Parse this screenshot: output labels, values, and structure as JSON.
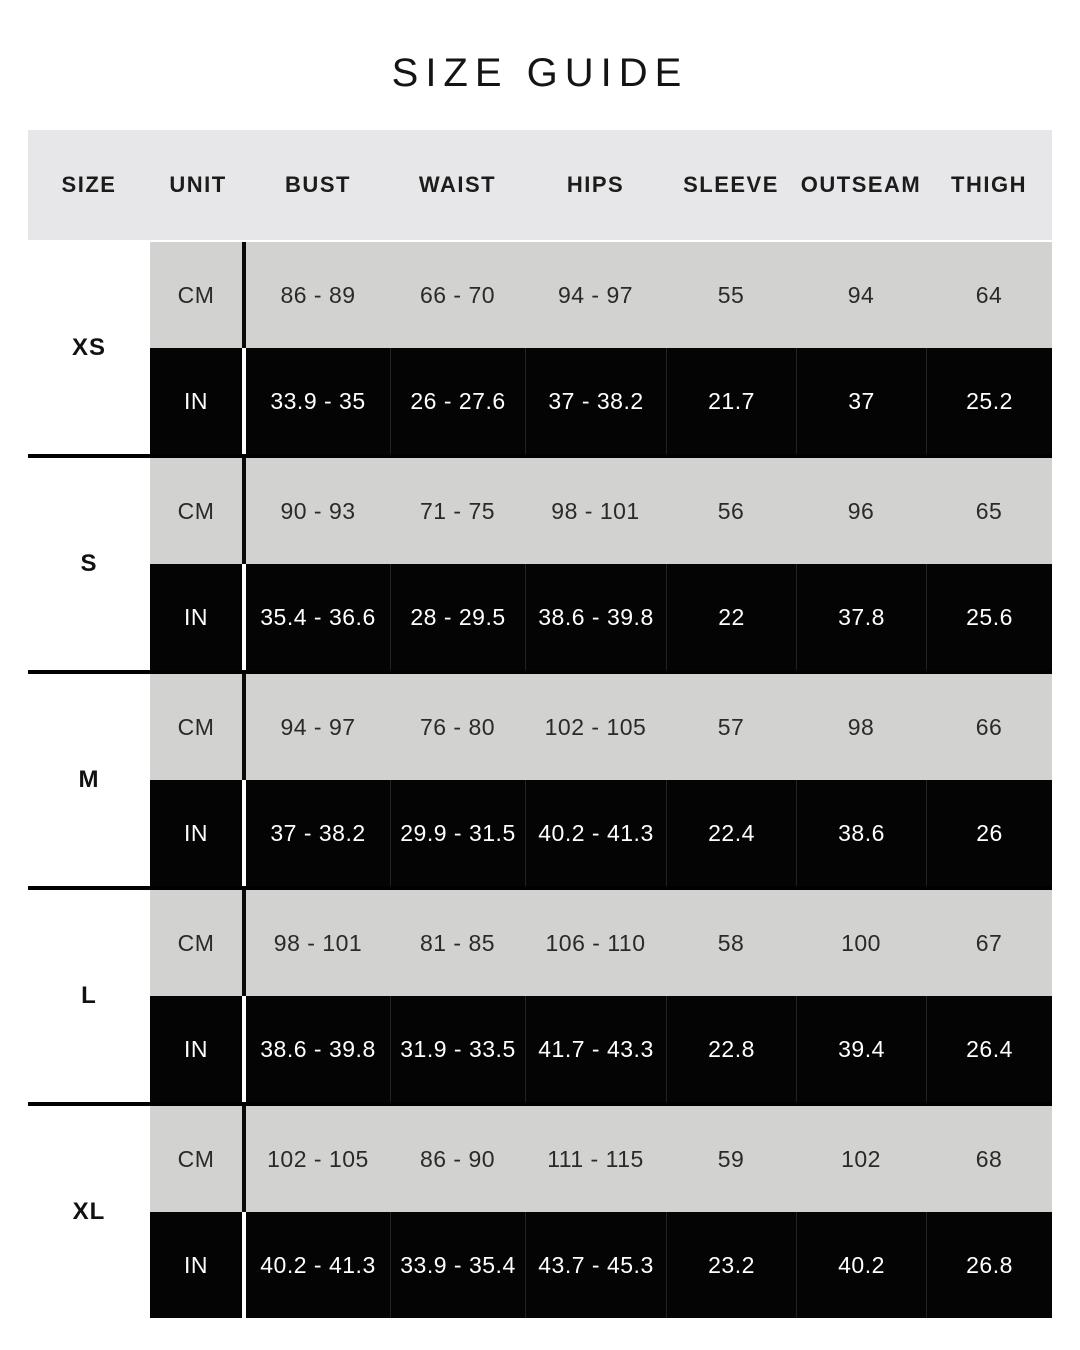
{
  "title": "SIZE GUIDE",
  "chart_data": {
    "type": "table",
    "title": "SIZE GUIDE",
    "columns": [
      "SIZE",
      "UNIT",
      "BUST",
      "WAIST",
      "HIPS",
      "SLEEVE",
      "OUTSEAM",
      "THIGH"
    ],
    "row_groups": [
      {
        "label": "XS",
        "rows": [
          {
            "unit": "CM",
            "values": [
              "86 - 89",
              "66 - 70",
              "94 - 97",
              "55",
              "94",
              "64"
            ]
          },
          {
            "unit": "IN",
            "values": [
              "33.9 - 35",
              "26 - 27.6",
              "37 - 38.2",
              "21.7",
              "37",
              "25.2"
            ]
          }
        ]
      },
      {
        "label": "S",
        "rows": [
          {
            "unit": "CM",
            "values": [
              "90 - 93",
              "71 - 75",
              "98 - 101",
              "56",
              "96",
              "65"
            ]
          },
          {
            "unit": "IN",
            "values": [
              "35.4 - 36.6",
              "28 - 29.5",
              "38.6 - 39.8",
              "22",
              "37.8",
              "25.6"
            ]
          }
        ]
      },
      {
        "label": "M",
        "rows": [
          {
            "unit": "CM",
            "values": [
              "94 - 97",
              "76 - 80",
              "102 - 105",
              "57",
              "98",
              "66"
            ]
          },
          {
            "unit": "IN",
            "values": [
              "37 - 38.2",
              "29.9 - 31.5",
              "40.2 - 41.3",
              "22.4",
              "38.6",
              "26"
            ]
          }
        ]
      },
      {
        "label": "L",
        "rows": [
          {
            "unit": "CM",
            "values": [
              "98 - 101",
              "81 - 85",
              "106 - 110",
              "58",
              "100",
              "67"
            ]
          },
          {
            "unit": "IN",
            "values": [
              "38.6 - 39.8",
              "31.9 - 33.5",
              "41.7 - 43.3",
              "22.8",
              "39.4",
              "26.4"
            ]
          }
        ]
      },
      {
        "label": "XL",
        "rows": [
          {
            "unit": "CM",
            "values": [
              "102 - 105",
              "86 - 90",
              "111 - 115",
              "59",
              "102",
              "68"
            ]
          },
          {
            "unit": "IN",
            "values": [
              "40.2 - 41.3",
              "33.9 - 35.4",
              "43.7 - 45.3",
              "23.2",
              "40.2",
              "26.8"
            ]
          }
        ]
      }
    ]
  },
  "colors": {
    "page_bg": "#ffffff",
    "header_bg": "#e7e7e9",
    "cm_row_bg": "#d2d2d0",
    "in_row_bg": "#040404",
    "separator": "#000000",
    "text_dark": "#232323",
    "text_light": "#ffffff"
  }
}
